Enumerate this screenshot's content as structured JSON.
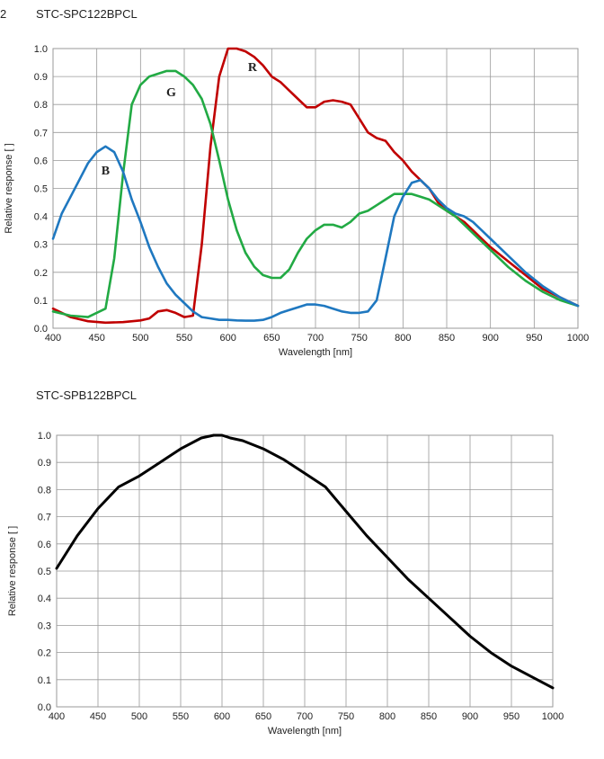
{
  "page_number": "2",
  "chart_data": [
    {
      "type": "line",
      "title": "STC-SPC122BPCL",
      "xlabel": "Wavelength [nm]",
      "ylabel": "Relative response [ ]",
      "xlim": [
        400,
        1000
      ],
      "ylim": [
        0,
        1.0
      ],
      "grid": true,
      "x_ticks": [
        "400",
        "450",
        "500",
        "550",
        "600",
        "650",
        "700",
        "750",
        "800",
        "850",
        "900",
        "950",
        "1000"
      ],
      "y_ticks": [
        "0.0",
        "0.1",
        "0.2",
        "0.3",
        "0.4",
        "0.5",
        "0.6",
        "0.7",
        "0.8",
        "0.9",
        "1.0"
      ],
      "annotations": [
        {
          "text": "R",
          "x": 628,
          "y": 0.92
        },
        {
          "text": "G",
          "x": 535,
          "y": 0.83
        },
        {
          "text": "B",
          "x": 460,
          "y": 0.55
        }
      ],
      "series": [
        {
          "color": "#c00000",
          "x": [
            400,
            420,
            440,
            460,
            480,
            500,
            510,
            520,
            530,
            540,
            550,
            560,
            570,
            580,
            590,
            600,
            610,
            620,
            630,
            640,
            650,
            660,
            670,
            680,
            690,
            700,
            710,
            720,
            730,
            740,
            750,
            760,
            770,
            780,
            790,
            800,
            810,
            820,
            830,
            840,
            850,
            860,
            870,
            880,
            890,
            900,
            920,
            940,
            960,
            980,
            1000
          ],
          "y": [
            0.07,
            0.04,
            0.025,
            0.02,
            0.022,
            0.028,
            0.035,
            0.06,
            0.065,
            0.055,
            0.04,
            0.045,
            0.3,
            0.65,
            0.9,
            1.0,
            1.0,
            0.99,
            0.97,
            0.94,
            0.9,
            0.88,
            0.85,
            0.82,
            0.79,
            0.79,
            0.81,
            0.815,
            0.81,
            0.8,
            0.75,
            0.7,
            0.68,
            0.67,
            0.63,
            0.6,
            0.56,
            0.53,
            0.5,
            0.45,
            0.42,
            0.4,
            0.38,
            0.35,
            0.32,
            0.29,
            0.24,
            0.19,
            0.14,
            0.11,
            0.08
          ]
        },
        {
          "color": "#22aa44",
          "x": [
            400,
            420,
            440,
            460,
            470,
            480,
            490,
            500,
            510,
            520,
            530,
            540,
            550,
            560,
            570,
            580,
            590,
            600,
            610,
            620,
            630,
            640,
            650,
            660,
            670,
            680,
            690,
            700,
            710,
            720,
            730,
            740,
            750,
            760,
            770,
            780,
            790,
            800,
            810,
            820,
            830,
            840,
            850,
            860,
            870,
            880,
            890,
            900,
            920,
            940,
            960,
            980,
            1000
          ],
          "y": [
            0.06,
            0.045,
            0.04,
            0.07,
            0.25,
            0.55,
            0.8,
            0.87,
            0.9,
            0.91,
            0.92,
            0.92,
            0.9,
            0.87,
            0.82,
            0.73,
            0.6,
            0.46,
            0.35,
            0.27,
            0.22,
            0.19,
            0.18,
            0.18,
            0.21,
            0.27,
            0.32,
            0.35,
            0.37,
            0.37,
            0.36,
            0.38,
            0.41,
            0.42,
            0.44,
            0.46,
            0.48,
            0.48,
            0.48,
            0.47,
            0.46,
            0.44,
            0.42,
            0.4,
            0.37,
            0.34,
            0.31,
            0.28,
            0.22,
            0.17,
            0.13,
            0.1,
            0.08
          ]
        },
        {
          "color": "#1f78c0",
          "x": [
            400,
            410,
            420,
            430,
            440,
            450,
            460,
            470,
            480,
            490,
            500,
            510,
            520,
            530,
            540,
            550,
            560,
            570,
            580,
            590,
            600,
            610,
            620,
            630,
            640,
            650,
            660,
            670,
            680,
            690,
            700,
            710,
            720,
            730,
            740,
            750,
            760,
            770,
            780,
            790,
            800,
            810,
            820,
            830,
            840,
            850,
            860,
            870,
            880,
            890,
            900,
            920,
            940,
            960,
            980,
            1000
          ],
          "y": [
            0.32,
            0.41,
            0.47,
            0.53,
            0.59,
            0.63,
            0.65,
            0.63,
            0.56,
            0.46,
            0.38,
            0.29,
            0.22,
            0.16,
            0.12,
            0.09,
            0.06,
            0.04,
            0.035,
            0.03,
            0.03,
            0.028,
            0.027,
            0.027,
            0.03,
            0.04,
            0.055,
            0.065,
            0.075,
            0.085,
            0.085,
            0.08,
            0.07,
            0.06,
            0.055,
            0.055,
            0.06,
            0.1,
            0.25,
            0.4,
            0.47,
            0.52,
            0.53,
            0.5,
            0.46,
            0.43,
            0.41,
            0.4,
            0.38,
            0.35,
            0.32,
            0.26,
            0.2,
            0.15,
            0.11,
            0.08
          ]
        }
      ]
    },
    {
      "type": "line",
      "title": "STC-SPB122BPCL",
      "xlabel": "Wavelength [nm]",
      "ylabel": "Relative response [ ]",
      "xlim": [
        400,
        1000
      ],
      "ylim": [
        0,
        1.0
      ],
      "grid": true,
      "x_ticks": [
        "400",
        "450",
        "500",
        "550",
        "600",
        "650",
        "700",
        "750",
        "800",
        "850",
        "900",
        "950",
        "1000"
      ],
      "y_ticks": [
        "0.0",
        "0.1",
        "0.2",
        "0.3",
        "0.4",
        "0.5",
        "0.6",
        "0.7",
        "0.8",
        "0.9",
        "1.0"
      ],
      "series": [
        {
          "color": "#000000",
          "x": [
            400,
            425,
            450,
            475,
            500,
            525,
            550,
            575,
            590,
            600,
            610,
            625,
            650,
            675,
            700,
            725,
            750,
            775,
            800,
            825,
            850,
            875,
            900,
            925,
            950,
            975,
            1000
          ],
          "y": [
            0.51,
            0.63,
            0.73,
            0.81,
            0.85,
            0.9,
            0.95,
            0.99,
            1.0,
            1.0,
            0.99,
            0.98,
            0.95,
            0.91,
            0.86,
            0.81,
            0.72,
            0.63,
            0.55,
            0.47,
            0.4,
            0.33,
            0.26,
            0.2,
            0.15,
            0.11,
            0.07
          ]
        }
      ]
    }
  ]
}
